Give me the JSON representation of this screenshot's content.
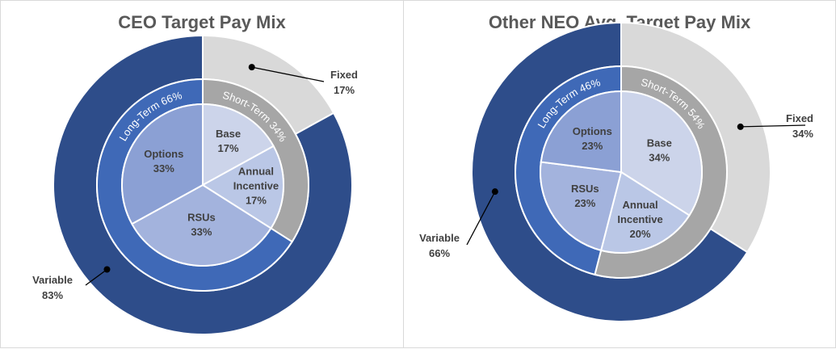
{
  "colors": {
    "variable": "#2e4d8a",
    "long_term": "#3f69b7",
    "fixed": "#d9d9d9",
    "short_term": "#a6a6a6",
    "options": "#8ba0d4",
    "rsus": "#a3b3dd",
    "base": "#ccd4ea",
    "annual_incentive": "#bac7e6",
    "divider": "#ffffff"
  },
  "chart_data": [
    {
      "type": "pie",
      "title": "CEO Target Pay Mix",
      "outer_ring": [
        {
          "name": "Fixed",
          "label": "Fixed",
          "value": 17,
          "value_label": "17%"
        },
        {
          "name": "Variable",
          "label": "Variable",
          "value": 83,
          "value_label": "83%"
        }
      ],
      "middle_ring": [
        {
          "name": "Short-Term",
          "label": "Short-Term 34%",
          "value": 34
        },
        {
          "name": "Long-Term",
          "label": "Long-Term 66%",
          "value": 66
        }
      ],
      "inner_pie": [
        {
          "name": "Base",
          "label": "Base",
          "value": 17,
          "value_label": "17%"
        },
        {
          "name": "Annual Incentive",
          "label": "Annual Incentive",
          "value": 17,
          "value_label": "17%"
        },
        {
          "name": "RSUs",
          "label": "RSUs",
          "value": 33,
          "value_label": "33%"
        },
        {
          "name": "Options",
          "label": "Options",
          "value": 33,
          "value_label": "33%"
        }
      ]
    },
    {
      "type": "pie",
      "title": "Other NEO Avg. Target Pay Mix",
      "outer_ring": [
        {
          "name": "Fixed",
          "label": "Fixed",
          "value": 34,
          "value_label": "34%"
        },
        {
          "name": "Variable",
          "label": "Variable",
          "value": 66,
          "value_label": "66%"
        }
      ],
      "middle_ring": [
        {
          "name": "Short-Term",
          "label": "Short-Term 54%",
          "value": 54
        },
        {
          "name": "Long-Term",
          "label": "Long-Term 46%",
          "value": 46
        }
      ],
      "inner_pie": [
        {
          "name": "Base",
          "label": "Base",
          "value": 34,
          "value_label": "34%"
        },
        {
          "name": "Annual Incentive",
          "label": "Annual Incentive",
          "value": 20,
          "value_label": "20%"
        },
        {
          "name": "RSUs",
          "label": "RSUs",
          "value": 23,
          "value_label": "23%"
        },
        {
          "name": "Options",
          "label": "Options",
          "value": 23,
          "value_label": "23%"
        }
      ]
    }
  ]
}
